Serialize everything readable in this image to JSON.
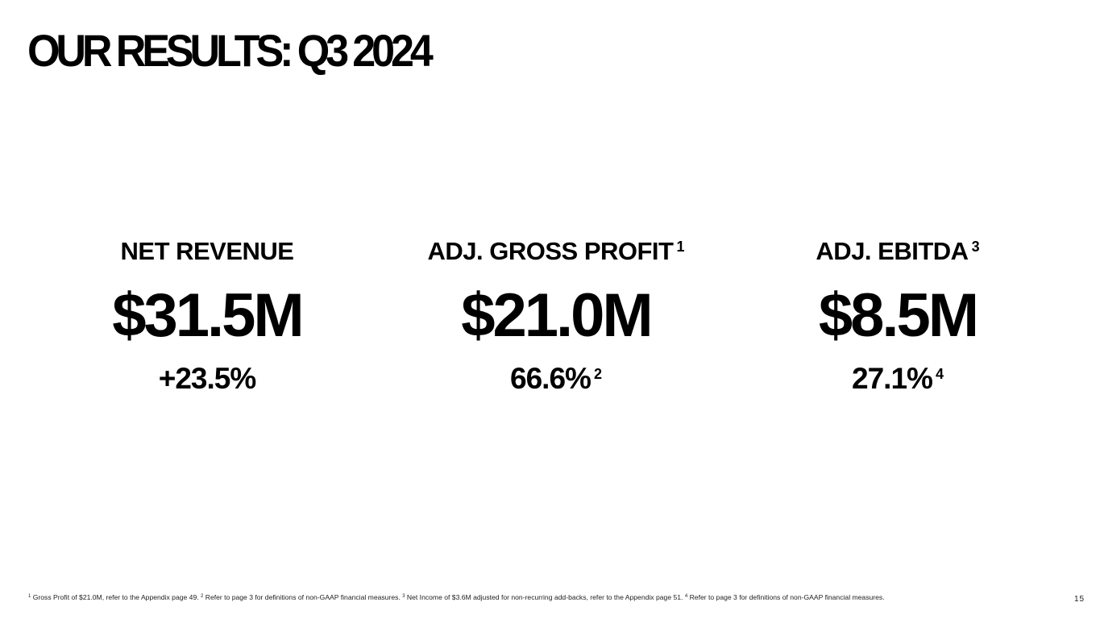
{
  "slide": {
    "title": "OUR RESULTS: Q3 2024",
    "page_number": "15"
  },
  "metrics": [
    {
      "label": "NET REVENUE",
      "label_note": "",
      "value": "$31.5M",
      "sub": "+23.5%",
      "sub_note": ""
    },
    {
      "label": "ADJ. GROSS PROFIT",
      "label_note": "1",
      "value": "$21.0M",
      "sub": "66.6%",
      "sub_note": "2"
    },
    {
      "label": "ADJ. EBITDA",
      "label_note": "3",
      "value": "$8.5M",
      "sub": "27.1%",
      "sub_note": "4"
    }
  ],
  "footnotes": [
    {
      "mark": "1",
      "text": "Gross Profit of $21.0M, refer to the Appendix page 49. "
    },
    {
      "mark": "2",
      "text": "Refer to page 3 for definitions of non-GAAP financial measures. "
    },
    {
      "mark": "3",
      "text": "Net Income of $3.6M adjusted for non-recurring add-backs, refer to the Appendix page 51. "
    },
    {
      "mark": "4",
      "text": "Refer to page 3 for definitions of non-GAAP financial measures."
    }
  ]
}
